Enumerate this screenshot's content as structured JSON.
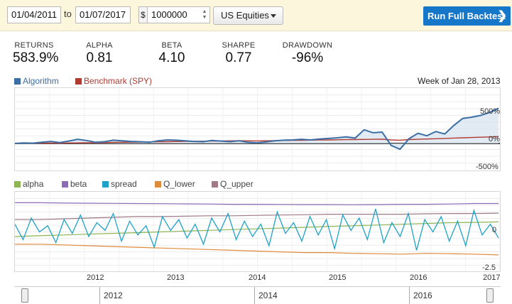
{
  "toolbar": {
    "start_date": "01/04/2011",
    "to_label": "to",
    "end_date": "01/07/2017",
    "currency_symbol": "$",
    "capital": "1000000",
    "universe": "US Equities",
    "run_button": "Run Full Backtest",
    "chevron": "❯"
  },
  "stats": [
    {
      "label": "RETURNS",
      "value": "583.9%"
    },
    {
      "label": "ALPHA",
      "value": "0.81"
    },
    {
      "label": "BETA",
      "value": "4.10"
    },
    {
      "label": "SHARPE",
      "value": "0.77"
    },
    {
      "label": "DRAWDOWN",
      "value": "-96%"
    }
  ],
  "top_chart": {
    "legend": [
      {
        "name": "Algorithm",
        "color": "#3a6ea5"
      },
      {
        "name": "Benchmark (SPY)",
        "color": "#b03a32"
      }
    ],
    "week_label": "Week of Jan 28, 2013",
    "y_ticks": [
      "500%",
      "0%",
      "-500%"
    ]
  },
  "bottom_chart": {
    "legend": [
      {
        "name": "alpha",
        "color": "#8db552"
      },
      {
        "name": "beta",
        "color": "#8a6db5"
      },
      {
        "name": "spread",
        "color": "#1ea2c8"
      },
      {
        "name": "Q_lower",
        "color": "#e08a3c"
      },
      {
        "name": "Q_upper",
        "color": "#a07a84"
      }
    ],
    "y_ticks": [
      "0",
      "-2.5"
    ]
  },
  "x_axis": [
    "2012",
    "2013",
    "2014",
    "2015",
    "2016",
    "2017"
  ],
  "navigator": [
    "2012",
    "2014",
    "2016"
  ],
  "chart_data": [
    {
      "type": "area",
      "y_range_percent": [
        -500,
        500
      ],
      "grid": true,
      "legend_position": "top-left",
      "series": [
        {
          "name": "Algorithm",
          "values": [
            0,
            10,
            5,
            20,
            35,
            15,
            40,
            70,
            50,
            20,
            30,
            55,
            45,
            35,
            30,
            20,
            45,
            60,
            55,
            45,
            35,
            30,
            50,
            40,
            30,
            45,
            20,
            10,
            25,
            45,
            55,
            60,
            70,
            60,
            75,
            85,
            95,
            110,
            90,
            230,
            180,
            190,
            -40,
            -120,
            80,
            170,
            130,
            200,
            160,
            300,
            420,
            440,
            470,
            520,
            590
          ]
        },
        {
          "name": "Benchmark (SPY)",
          "values": [
            0,
            2,
            3,
            5,
            6,
            4,
            8,
            10,
            12,
            11,
            14,
            18,
            20,
            22,
            24,
            26,
            28,
            30,
            33,
            35,
            36,
            38,
            40,
            42,
            44,
            46,
            44,
            42,
            45,
            48,
            50,
            52,
            54,
            56,
            58,
            60,
            62,
            64,
            66,
            68,
            70,
            72,
            60,
            55,
            65,
            70,
            75,
            80,
            85,
            90,
            95,
            100,
            105,
            110,
            115
          ]
        }
      ]
    },
    {
      "type": "line",
      "y_range": [
        -2.5,
        1.5
      ],
      "grid": true,
      "legend_position": "top-left",
      "series": [
        {
          "name": "alpha",
          "values": [
            -0.6,
            -0.55,
            -0.5,
            -0.45,
            -0.4,
            -0.35,
            -0.3,
            -0.25,
            -0.2,
            -0.15,
            -0.1,
            -0.05,
            0.0,
            0.05,
            0.1,
            0.15,
            0.2,
            0.25,
            0.3,
            0.32,
            0.35
          ]
        },
        {
          "name": "beta",
          "values": [
            1.6,
            1.6,
            1.58,
            1.57,
            1.56,
            1.55,
            1.54,
            1.53,
            1.52,
            1.5,
            1.5,
            1.49,
            1.48,
            1.48,
            1.47,
            1.48,
            1.5,
            1.5,
            1.52,
            1.55,
            1.55
          ]
        },
        {
          "name": "Q_upper",
          "values": [
            0.5,
            0.5,
            0.55,
            0.6,
            0.65,
            0.7,
            0.7,
            0.72,
            0.75,
            0.75,
            0.78,
            0.8,
            0.82,
            0.85,
            0.85,
            0.85,
            0.85,
            0.88,
            0.9,
            0.9,
            0.92
          ]
        },
        {
          "name": "Q_lower",
          "values": [
            -1.1,
            -1.1,
            -1.15,
            -1.2,
            -1.25,
            -1.3,
            -1.35,
            -1.4,
            -1.45,
            -1.5,
            -1.55,
            -1.6,
            -1.65,
            -1.65,
            -1.7,
            -1.72,
            -1.75,
            -1.7,
            -1.72,
            -1.75,
            -1.8
          ]
        },
        {
          "name": "spread",
          "values": [
            0.2,
            -0.8,
            0.6,
            -0.3,
            0.1,
            -1.0,
            0.5,
            -0.4,
            0.8,
            -0.6,
            0.3,
            -0.2,
            0.9,
            -0.9,
            0.4,
            -0.5,
            0.1,
            -1.3,
            0.7,
            -0.2,
            0.5,
            -0.7,
            0.2,
            -1.1,
            0.6,
            -0.3,
            0.9,
            -0.8,
            0.4,
            -0.6,
            0.2,
            -1.2,
            1.0,
            -0.4,
            0.3,
            -0.9,
            0.7,
            -0.5,
            0.5,
            -1.4,
            0.8,
            -0.2,
            0.6,
            -0.8,
            1.2,
            -1.0,
            0.3,
            -0.6,
            0.9,
            -1.5,
            0.5,
            -0.3,
            0.7,
            -0.9,
            0.4,
            -1.2,
            1.1,
            -0.5,
            0.2,
            -0.7
          ]
        }
      ]
    }
  ]
}
